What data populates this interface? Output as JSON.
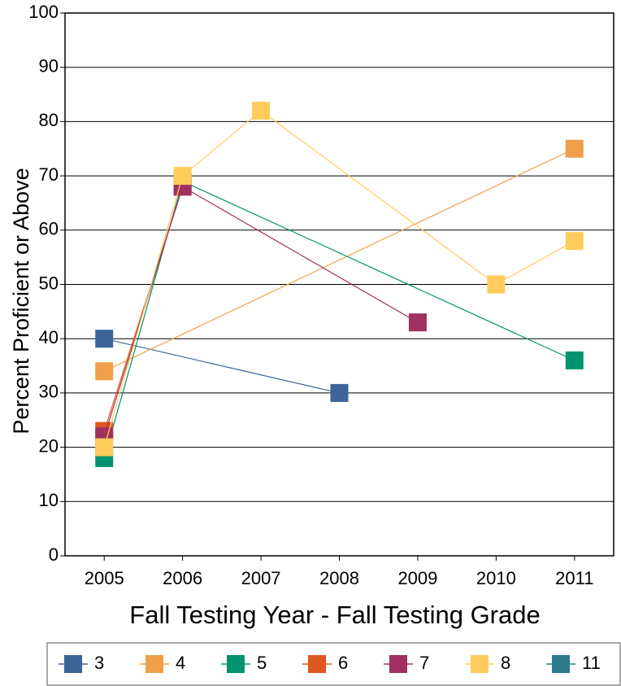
{
  "chart_data": {
    "type": "line",
    "x_label": "Fall Testing Year  - Fall Testing Grade",
    "y_label": "Percent Proficient or Above",
    "xlim": [
      2004.5,
      2011.5
    ],
    "xticks": [
      2005,
      2006,
      2007,
      2008,
      2009,
      2010,
      2011
    ],
    "ylim": [
      0,
      100
    ],
    "yticks": [
      0,
      10,
      20,
      30,
      40,
      50,
      60,
      70,
      80,
      90,
      100
    ],
    "grid": true,
    "legend": "bottom",
    "series": [
      {
        "name": "3",
        "color": "#3c6499",
        "x": [
          2005,
          2008
        ],
        "values": [
          40,
          30
        ]
      },
      {
        "name": "4",
        "color": "#f0a04b",
        "x": [
          2005,
          2011
        ],
        "values": [
          34,
          75
        ]
      },
      {
        "name": "5",
        "color": "#00936e",
        "x": [
          2005,
          2006,
          2011
        ],
        "values": [
          18,
          69,
          36
        ]
      },
      {
        "name": "6",
        "color": "#e0561f",
        "x": [
          2005,
          2006
        ],
        "values": [
          23,
          68
        ]
      },
      {
        "name": "7",
        "color": "#a0305f",
        "x": [
          2005,
          2006,
          2009
        ],
        "values": [
          22,
          68,
          43
        ]
      },
      {
        "name": "8",
        "color": "#ffcc5c",
        "x": [
          2005,
          2006,
          2007,
          2010,
          2011
        ],
        "values": [
          20,
          70,
          82,
          50,
          58
        ]
      },
      {
        "name": "11",
        "color": "#2b7a8c",
        "x": [],
        "values": []
      }
    ]
  }
}
